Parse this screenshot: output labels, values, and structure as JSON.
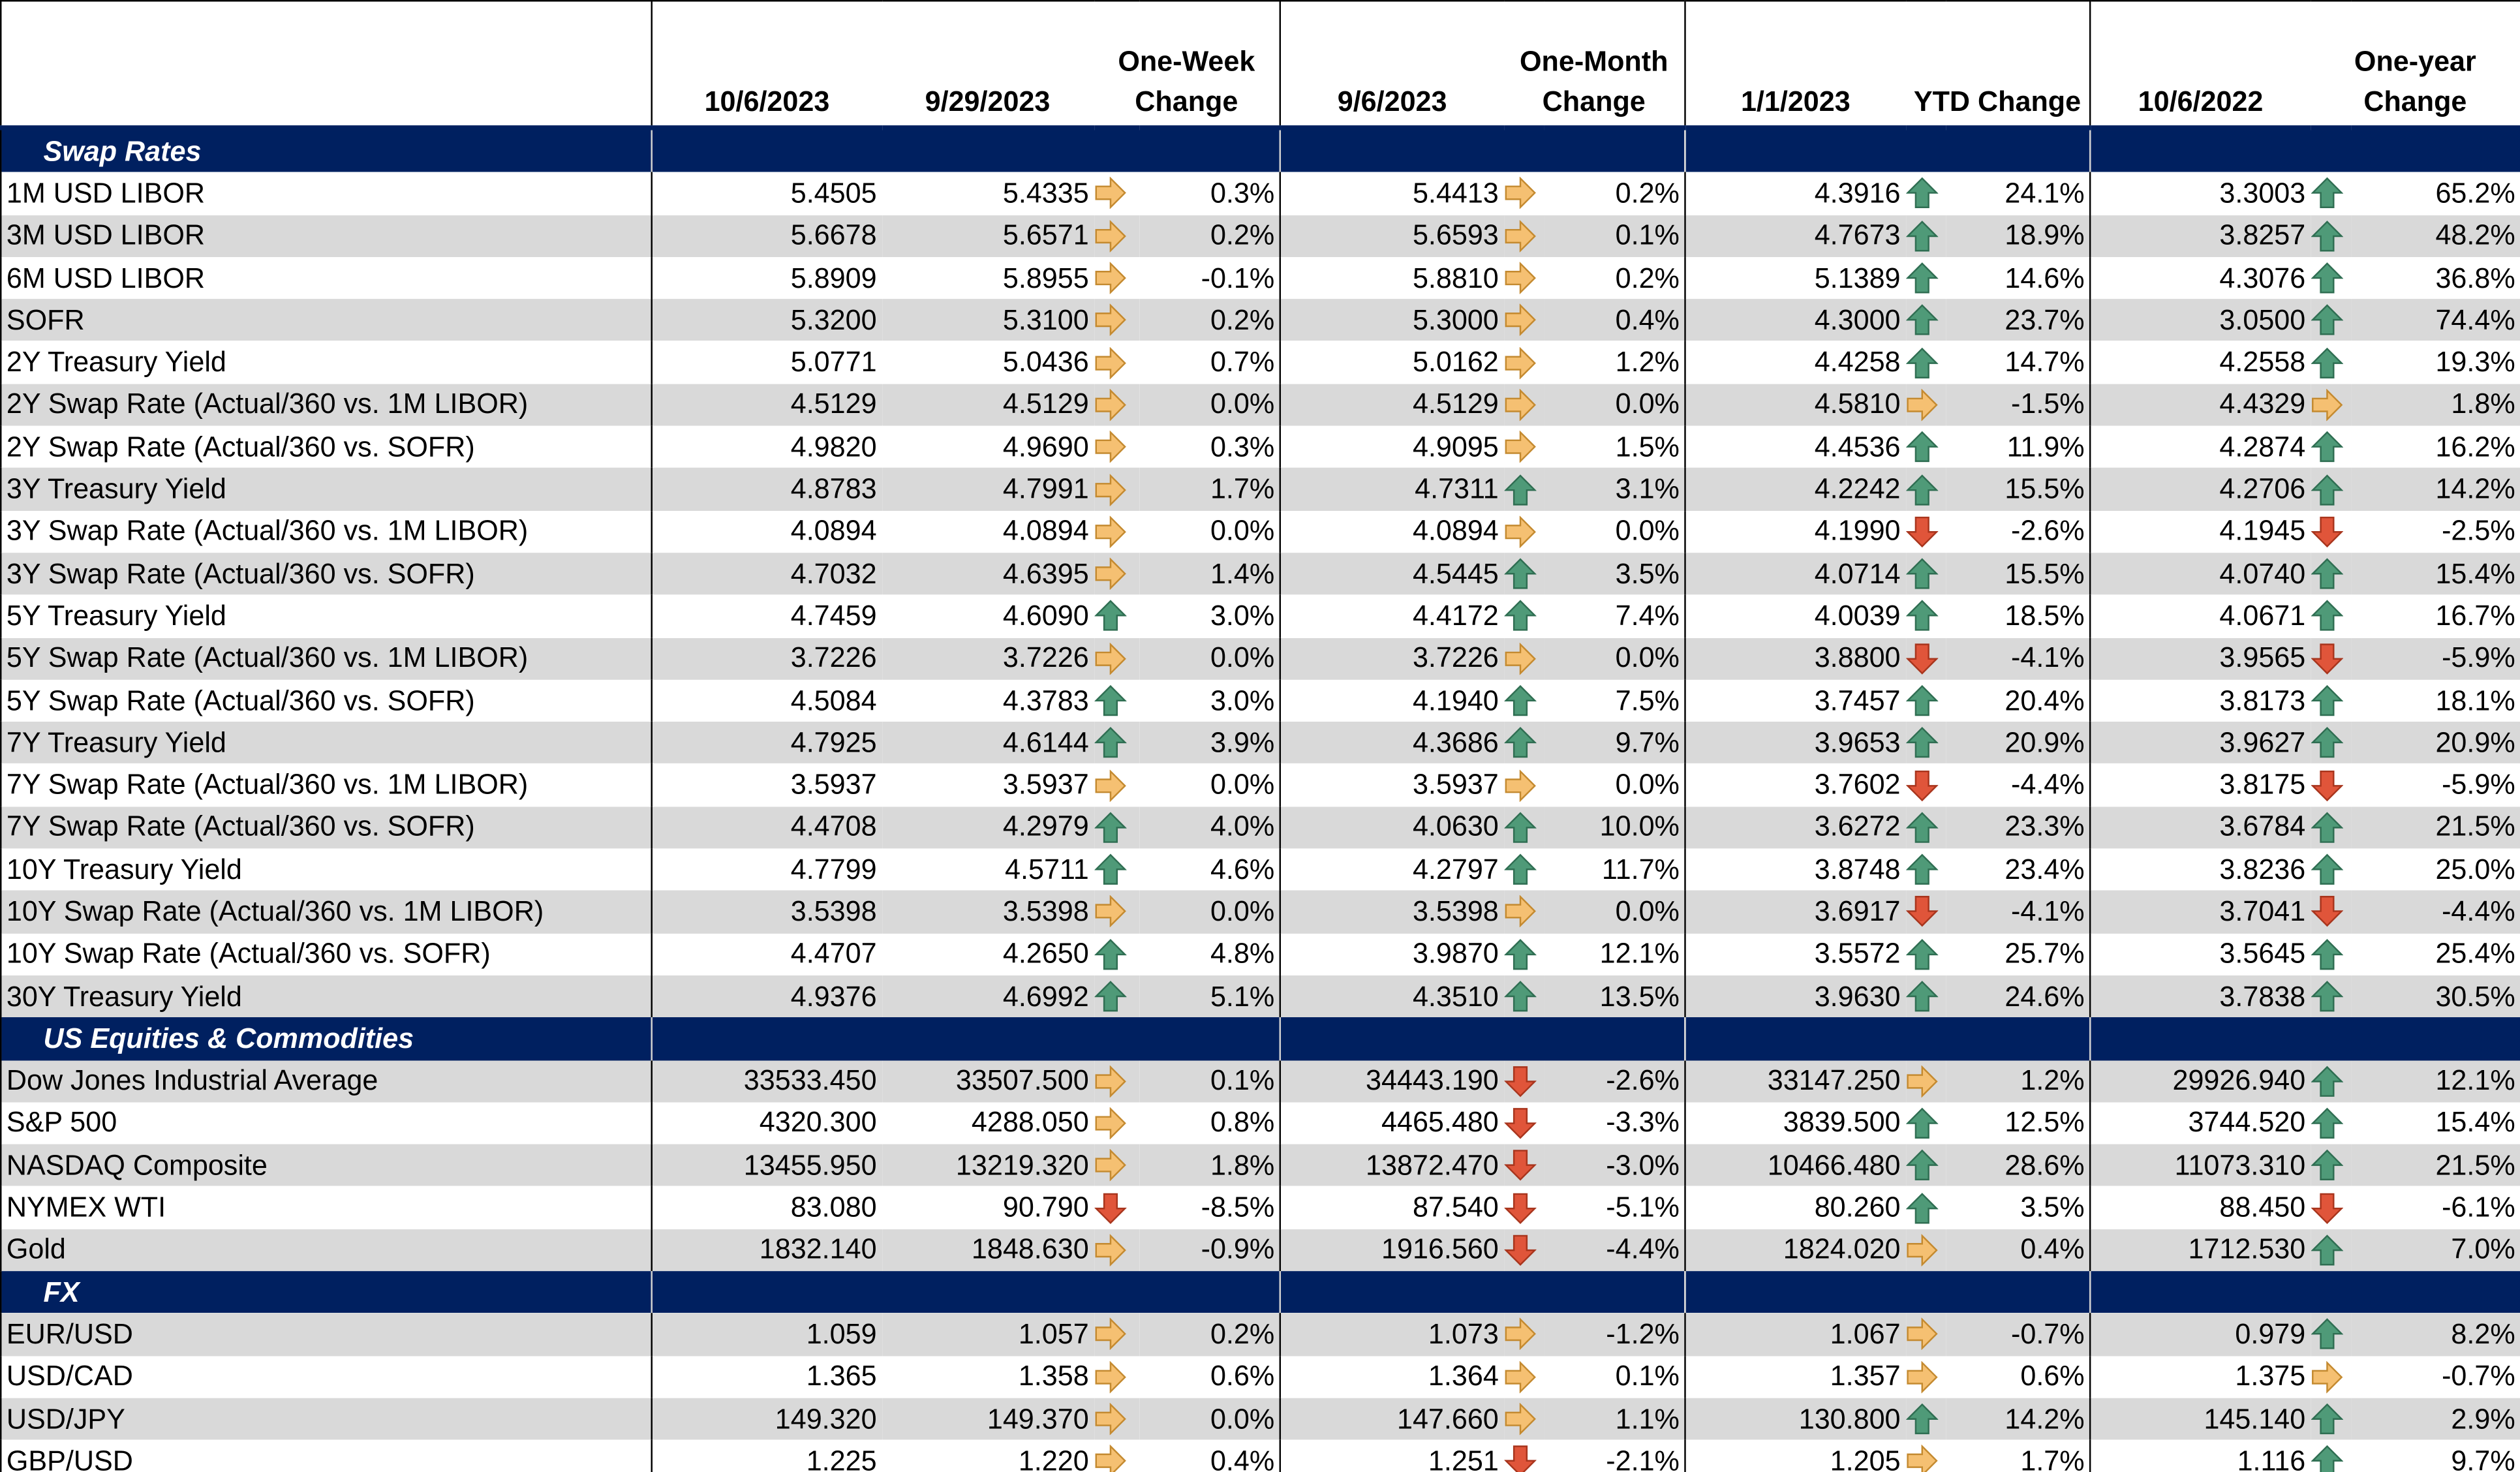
{
  "header": {
    "columns": [
      "10/6/2023",
      "9/29/2023",
      "One-Week Change",
      "9/6/2023",
      "One-Month Change",
      "1/1/2023",
      "YTD Change",
      "10/6/2022",
      "One-year Change"
    ]
  },
  "sections": [
    {
      "title": "Swap Rates",
      "rows": [
        {
          "label": "1M USD LIBOR",
          "cells": [
            "5.4505",
            "5.4335",
            "0.3%",
            "5.4413",
            "0.2%",
            "4.3916",
            "24.1%",
            "3.3003",
            "65.2%"
          ],
          "arrows": [
            "right",
            "right",
            "up",
            "up"
          ]
        },
        {
          "label": "3M USD LIBOR",
          "cells": [
            "5.6678",
            "5.6571",
            "0.2%",
            "5.6593",
            "0.1%",
            "4.7673",
            "18.9%",
            "3.8257",
            "48.2%"
          ],
          "arrows": [
            "right",
            "right",
            "up",
            "up"
          ]
        },
        {
          "label": "6M USD LIBOR",
          "cells": [
            "5.8909",
            "5.8955",
            "-0.1%",
            "5.8810",
            "0.2%",
            "5.1389",
            "14.6%",
            "4.3076",
            "36.8%"
          ],
          "arrows": [
            "right",
            "right",
            "up",
            "up"
          ]
        },
        {
          "label": "SOFR",
          "cells": [
            "5.3200",
            "5.3100",
            "0.2%",
            "5.3000",
            "0.4%",
            "4.3000",
            "23.7%",
            "3.0500",
            "74.4%"
          ],
          "arrows": [
            "right",
            "right",
            "up",
            "up"
          ]
        },
        {
          "label": "2Y Treasury Yield",
          "cells": [
            "5.0771",
            "5.0436",
            "0.7%",
            "5.0162",
            "1.2%",
            "4.4258",
            "14.7%",
            "4.2558",
            "19.3%"
          ],
          "arrows": [
            "right",
            "right",
            "up",
            "up"
          ]
        },
        {
          "label": "2Y Swap Rate (Actual/360 vs. 1M LIBOR)",
          "cells": [
            "4.5129",
            "4.5129",
            "0.0%",
            "4.5129",
            "0.0%",
            "4.5810",
            "-1.5%",
            "4.4329",
            "1.8%"
          ],
          "arrows": [
            "right",
            "right",
            "right",
            "right"
          ]
        },
        {
          "label": "2Y Swap Rate (Actual/360 vs. SOFR)",
          "cells": [
            "4.9820",
            "4.9690",
            "0.3%",
            "4.9095",
            "1.5%",
            "4.4536",
            "11.9%",
            "4.2874",
            "16.2%"
          ],
          "arrows": [
            "right",
            "right",
            "up",
            "up"
          ]
        },
        {
          "label": "3Y Treasury Yield",
          "cells": [
            "4.8783",
            "4.7991",
            "1.7%",
            "4.7311",
            "3.1%",
            "4.2242",
            "15.5%",
            "4.2706",
            "14.2%"
          ],
          "arrows": [
            "right",
            "up",
            "up",
            "up"
          ]
        },
        {
          "label": "3Y Swap Rate (Actual/360 vs. 1M LIBOR)",
          "cells": [
            "4.0894",
            "4.0894",
            "0.0%",
            "4.0894",
            "0.0%",
            "4.1990",
            "-2.6%",
            "4.1945",
            "-2.5%"
          ],
          "arrows": [
            "right",
            "right",
            "down",
            "down"
          ]
        },
        {
          "label": "3Y Swap Rate (Actual/360 vs. SOFR)",
          "cells": [
            "4.7032",
            "4.6395",
            "1.4%",
            "4.5445",
            "3.5%",
            "4.0714",
            "15.5%",
            "4.0740",
            "15.4%"
          ],
          "arrows": [
            "right",
            "up",
            "up",
            "up"
          ]
        },
        {
          "label": "5Y Treasury Yield",
          "cells": [
            "4.7459",
            "4.6090",
            "3.0%",
            "4.4172",
            "7.4%",
            "4.0039",
            "18.5%",
            "4.0671",
            "16.7%"
          ],
          "arrows": [
            "up",
            "up",
            "up",
            "up"
          ]
        },
        {
          "label": "5Y Swap Rate (Actual/360 vs. 1M LIBOR)",
          "cells": [
            "3.7226",
            "3.7226",
            "0.0%",
            "3.7226",
            "0.0%",
            "3.8800",
            "-4.1%",
            "3.9565",
            "-5.9%"
          ],
          "arrows": [
            "right",
            "right",
            "down",
            "down"
          ]
        },
        {
          "label": "5Y Swap Rate (Actual/360 vs. SOFR)",
          "cells": [
            "4.5084",
            "4.3783",
            "3.0%",
            "4.1940",
            "7.5%",
            "3.7457",
            "20.4%",
            "3.8173",
            "18.1%"
          ],
          "arrows": [
            "up",
            "up",
            "up",
            "up"
          ]
        },
        {
          "label": "7Y Treasury Yield",
          "cells": [
            "4.7925",
            "4.6144",
            "3.9%",
            "4.3686",
            "9.7%",
            "3.9653",
            "20.9%",
            "3.9627",
            "20.9%"
          ],
          "arrows": [
            "up",
            "up",
            "up",
            "up"
          ]
        },
        {
          "label": "7Y Swap Rate (Actual/360 vs. 1M LIBOR)",
          "cells": [
            "3.5937",
            "3.5937",
            "0.0%",
            "3.5937",
            "0.0%",
            "3.7602",
            "-4.4%",
            "3.8175",
            "-5.9%"
          ],
          "arrows": [
            "right",
            "right",
            "down",
            "down"
          ]
        },
        {
          "label": "7Y Swap Rate (Actual/360 vs. SOFR)",
          "cells": [
            "4.4708",
            "4.2979",
            "4.0%",
            "4.0630",
            "10.0%",
            "3.6272",
            "23.3%",
            "3.6784",
            "21.5%"
          ],
          "arrows": [
            "up",
            "up",
            "up",
            "up"
          ]
        },
        {
          "label": "10Y Treasury Yield",
          "cells": [
            "4.7799",
            "4.5711",
            "4.6%",
            "4.2797",
            "11.7%",
            "3.8748",
            "23.4%",
            "3.8236",
            "25.0%"
          ],
          "arrows": [
            "up",
            "up",
            "up",
            "up"
          ]
        },
        {
          "label": "10Y Swap Rate (Actual/360 vs. 1M LIBOR)",
          "cells": [
            "3.5398",
            "3.5398",
            "0.0%",
            "3.5398",
            "0.0%",
            "3.6917",
            "-4.1%",
            "3.7041",
            "-4.4%"
          ],
          "arrows": [
            "right",
            "right",
            "down",
            "down"
          ]
        },
        {
          "label": "10Y Swap Rate (Actual/360 vs. SOFR)",
          "cells": [
            "4.4707",
            "4.2650",
            "4.8%",
            "3.9870",
            "12.1%",
            "3.5572",
            "25.7%",
            "3.5645",
            "25.4%"
          ],
          "arrows": [
            "up",
            "up",
            "up",
            "up"
          ]
        },
        {
          "label": "30Y Treasury Yield",
          "cells": [
            "4.9376",
            "4.6992",
            "5.1%",
            "4.3510",
            "13.5%",
            "3.9630",
            "24.6%",
            "3.7838",
            "30.5%"
          ],
          "arrows": [
            "up",
            "up",
            "up",
            "up"
          ]
        }
      ]
    },
    {
      "title": "US Equities & Commodities",
      "rows": [
        {
          "label": "Dow Jones Industrial Average",
          "cells": [
            "33533.450",
            "33507.500",
            "0.1%",
            "34443.190",
            "-2.6%",
            "33147.250",
            "1.2%",
            "29926.940",
            "12.1%"
          ],
          "arrows": [
            "right",
            "down",
            "right",
            "up"
          ]
        },
        {
          "label": "S&P 500",
          "cells": [
            "4320.300",
            "4288.050",
            "0.8%",
            "4465.480",
            "-3.3%",
            "3839.500",
            "12.5%",
            "3744.520",
            "15.4%"
          ],
          "arrows": [
            "right",
            "down",
            "up",
            "up"
          ]
        },
        {
          "label": "NASDAQ Composite",
          "cells": [
            "13455.950",
            "13219.320",
            "1.8%",
            "13872.470",
            "-3.0%",
            "10466.480",
            "28.6%",
            "11073.310",
            "21.5%"
          ],
          "arrows": [
            "right",
            "down",
            "up",
            "up"
          ]
        },
        {
          "label": "NYMEX WTI",
          "cells": [
            "83.080",
            "90.790",
            "-8.5%",
            "87.540",
            "-5.1%",
            "80.260",
            "3.5%",
            "88.450",
            "-6.1%"
          ],
          "arrows": [
            "down",
            "down",
            "up",
            "down"
          ]
        },
        {
          "label": "Gold",
          "cells": [
            "1832.140",
            "1848.630",
            "-0.9%",
            "1916.560",
            "-4.4%",
            "1824.020",
            "0.4%",
            "1712.530",
            "7.0%"
          ],
          "arrows": [
            "right",
            "down",
            "right",
            "up"
          ]
        }
      ]
    },
    {
      "title": "FX",
      "rows": [
        {
          "label": "EUR/USD",
          "cells": [
            "1.059",
            "1.057",
            "0.2%",
            "1.073",
            "-1.2%",
            "1.067",
            "-0.7%",
            "0.979",
            "8.2%"
          ],
          "arrows": [
            "right",
            "right",
            "right",
            "up"
          ]
        },
        {
          "label": "USD/CAD",
          "cells": [
            "1.365",
            "1.358",
            "0.6%",
            "1.364",
            "0.1%",
            "1.357",
            "0.6%",
            "1.375",
            "-0.7%"
          ],
          "arrows": [
            "right",
            "right",
            "right",
            "right"
          ]
        },
        {
          "label": "USD/JPY",
          "cells": [
            "149.320",
            "149.370",
            "0.0%",
            "147.660",
            "1.1%",
            "130.800",
            "14.2%",
            "145.140",
            "2.9%"
          ],
          "arrows": [
            "right",
            "right",
            "up",
            "up"
          ]
        },
        {
          "label": "GBP/USD",
          "cells": [
            "1.225",
            "1.220",
            "0.4%",
            "1.251",
            "-2.1%",
            "1.205",
            "1.7%",
            "1.116",
            "9.7%"
          ],
          "arrows": [
            "right",
            "down",
            "right",
            "up"
          ]
        }
      ]
    }
  ]
}
